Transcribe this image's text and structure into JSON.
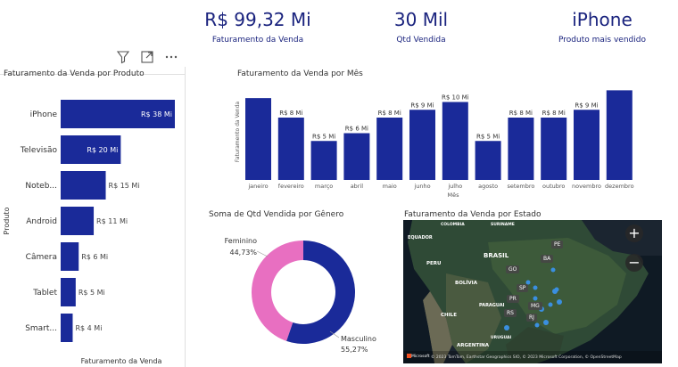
{
  "kpis": [
    {
      "value": "R$ 99,32 Mi",
      "label": "Faturamento da Venda"
    },
    {
      "value": "30 Mil",
      "label": "Qtd Vendida"
    },
    {
      "value": "iPhone",
      "label": "Produto mais vendido"
    }
  ],
  "toolbar_icons": [
    "filter-icon",
    "focus-mode-icon",
    "more-options-icon"
  ],
  "colors": {
    "bar": "#1a2a99",
    "female": "#e86fc1",
    "male": "#1a2a99",
    "map_bg": "#1b2530"
  },
  "product_chart": {
    "title": "Faturamento da Venda por Produto",
    "xlabel": "Faturamento da Venda",
    "ylabel": "Produto",
    "categories": [
      "iPhone",
      "Televisão",
      "Noteb...",
      "Android",
      "Câmera",
      "Tablet",
      "Smart..."
    ],
    "values": [
      38,
      20,
      15,
      11,
      6,
      5,
      4
    ],
    "labels": [
      "R$ 38 Mi",
      "R$ 20 Mi",
      "R$ 15 Mi",
      "R$ 11 Mi",
      "R$ 6 Mi",
      "R$ 5 Mi",
      "R$ 4 Mi"
    ]
  },
  "chart_data": [
    {
      "type": "bar",
      "title": "Faturamento da Venda por Mês",
      "xlabel": "Mês",
      "ylabel": "Faturamento da Venda",
      "categories": [
        "janeiro",
        "fevereiro",
        "março",
        "abril",
        "maio",
        "junho",
        "julho",
        "agosto",
        "setembro",
        "outubro",
        "novembro",
        "dezembro"
      ],
      "values": [
        10.5,
        8,
        5,
        6,
        8,
        9,
        10,
        5,
        8,
        8,
        9,
        11.5
      ],
      "labels": [
        "",
        "R$ 8 Mi",
        "R$ 5 Mi",
        "R$ 6 Mi",
        "R$ 8 Mi",
        "R$ 9 Mi",
        "R$ 10 Mi",
        "R$ 5 Mi",
        "R$ 8 Mi",
        "R$ 8 Mi",
        "R$ 9 Mi",
        ""
      ],
      "ylim": [
        0,
        12
      ]
    },
    {
      "type": "pie",
      "title": "Soma de Qtd Vendida por Gênero",
      "categories": [
        "Feminino",
        "Masculino"
      ],
      "values": [
        44.73,
        55.27
      ],
      "labels": [
        "44,73%",
        "55,27%"
      ]
    }
  ],
  "map": {
    "title": "Faturamento da Venda por Estado",
    "countries": [
      "COLOMBIA",
      "SURINAME",
      "EQUADOR",
      "BRASIL",
      "PERU",
      "BOLÍVIA",
      "PARAGUAI",
      "CHILE",
      "ARGENTINA",
      "URUGUAI"
    ],
    "states": [
      "PE",
      "BA",
      "GO",
      "SP",
      "PR",
      "MG",
      "RS",
      "RJ"
    ],
    "zoom_in": "+",
    "zoom_out": "−",
    "credits": "© 2023 TomTom, Earthstar Geographics SIO, © 2023 Microsoft Corporation, © OpenStreetMap",
    "brand": "Microsoft"
  }
}
